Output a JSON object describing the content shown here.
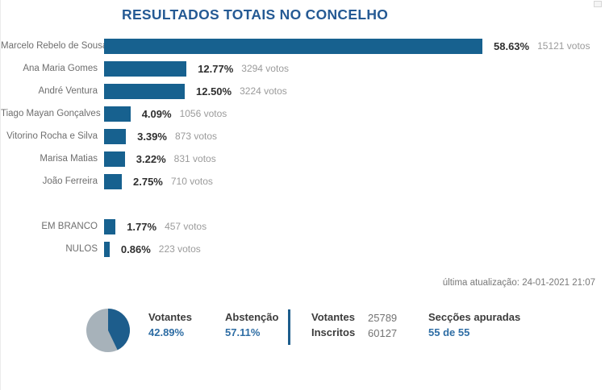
{
  "title": "RESULTADOS TOTAIS NO CONCELHO",
  "chart_data": {
    "type": "bar",
    "orientation": "horizontal",
    "title": "RESULTADOS TOTAIS NO CONCELHO",
    "xlabel": "",
    "ylabel": "",
    "unit": "votos",
    "xlim": [
      0,
      60
    ],
    "categories": [
      "Marcelo Rebelo de Sousa",
      "Ana Maria Gomes",
      "André Ventura",
      "Tiago Mayan Gonçalves",
      "Vitorino Rocha e Silva",
      "Marisa Matias",
      "João Ferreira",
      "EM BRANCO",
      "NULOS"
    ],
    "values": [
      58.63,
      12.77,
      12.5,
      4.09,
      3.39,
      3.22,
      2.75,
      1.77,
      0.86
    ],
    "votes": [
      15121,
      3294,
      3224,
      1056,
      873,
      831,
      710,
      457,
      223
    ],
    "rows": [
      {
        "label": "Marcelo Rebelo de Sousa",
        "value": 58.63,
        "percent_label": "58.63%",
        "votes_label": "15121 votos",
        "group": "candidate"
      },
      {
        "label": "Ana Maria Gomes",
        "value": 12.77,
        "percent_label": "12.77%",
        "votes_label": "3294 votos",
        "group": "candidate"
      },
      {
        "label": "André Ventura",
        "value": 12.5,
        "percent_label": "12.50%",
        "votes_label": "3224 votos",
        "group": "candidate"
      },
      {
        "label": "Tiago Mayan Gonçalves",
        "value": 4.09,
        "percent_label": "4.09%",
        "votes_label": "1056 votos",
        "group": "candidate"
      },
      {
        "label": "Vitorino Rocha e Silva",
        "value": 3.39,
        "percent_label": "3.39%",
        "votes_label": "873 votos",
        "group": "candidate"
      },
      {
        "label": "Marisa Matias",
        "value": 3.22,
        "percent_label": "3.22%",
        "votes_label": "831 votos",
        "group": "candidate"
      },
      {
        "label": "João Ferreira",
        "value": 2.75,
        "percent_label": "2.75%",
        "votes_label": "710 votos",
        "group": "candidate"
      },
      {
        "label": "EM BRANCO",
        "value": 1.77,
        "percent_label": "1.77%",
        "votes_label": "457 votos",
        "group": "other"
      },
      {
        "label": "NULOS",
        "value": 0.86,
        "percent_label": "0.86%",
        "votes_label": "223 votos",
        "group": "other"
      }
    ]
  },
  "last_update": "última atualização: 24-01-2021 21:07",
  "footer": {
    "pie": {
      "votantes_value": 42.89,
      "abstencao_value": 57.11
    },
    "votantes_label": "Votantes",
    "votantes_pct": "42.89%",
    "abstencao_label": "Abstenção",
    "abstencao_pct": "57.11%",
    "votantes_count_label": "Votantes",
    "votantes_count": "25789",
    "inscritos_label": "Inscritos",
    "inscritos_count": "60127",
    "seccoes_label": "Secções apuradas",
    "seccoes_value": "55 de 55"
  },
  "colors": {
    "title": "#255a94",
    "bar": "#17618f",
    "accent": "#2e6da4",
    "divider": "#1d5d8c",
    "pie-votantes": "#1d5d8c",
    "pie-abstencao": "#a7b2ba",
    "label-gray": "#6e6e6e",
    "votes-gray": "#9b9b9b",
    "text-dark": "#3c3c3c"
  }
}
